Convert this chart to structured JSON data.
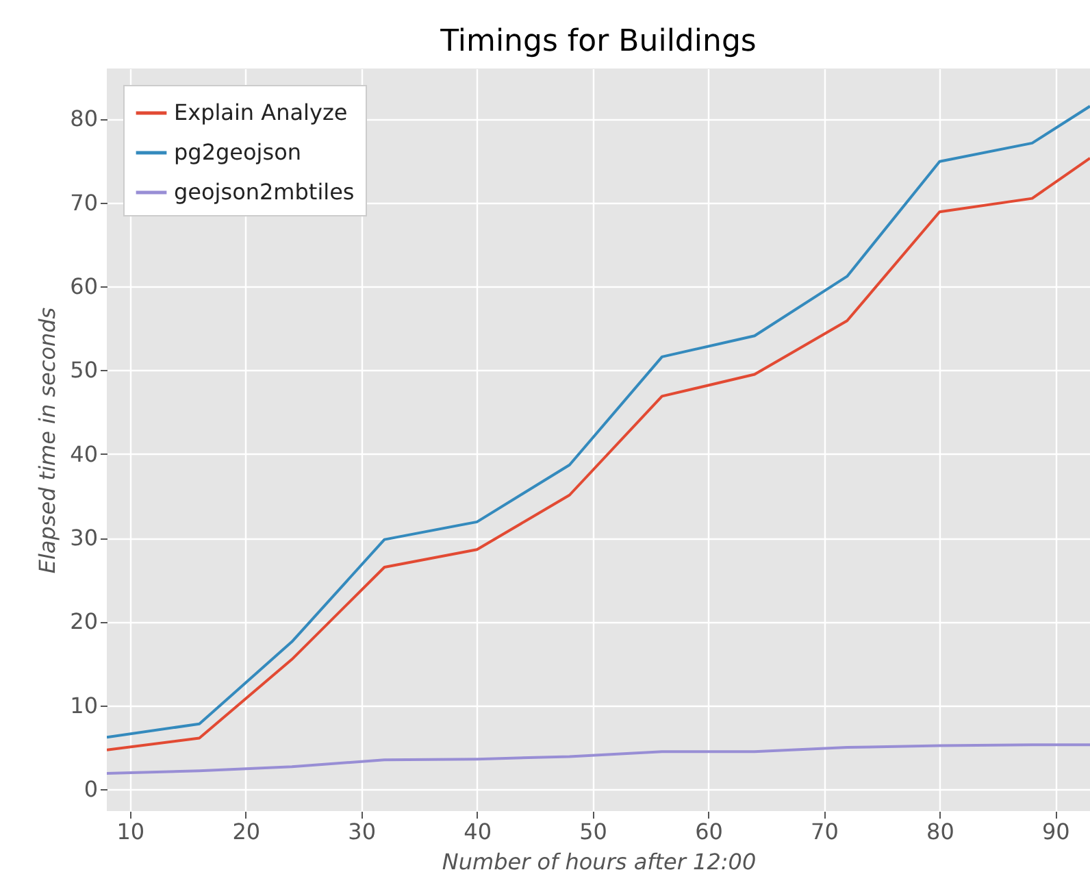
{
  "chart_data": {
    "type": "line",
    "title": "Timings for Buildings",
    "xlabel": "Number of hours after 12:00",
    "ylabel": "Elapsed time in seconds",
    "x": [
      8,
      16,
      24,
      32,
      40,
      48,
      56,
      64,
      72,
      80,
      88,
      93
    ],
    "series": [
      {
        "name": "Explain Analyze",
        "color": "#e24a33",
        "values": [
          4.7,
          6.1,
          15.5,
          26.5,
          28.6,
          35.1,
          46.9,
          49.5,
          55.9,
          68.9,
          70.5,
          75.3
        ]
      },
      {
        "name": "pg2geojson",
        "color": "#348abd",
        "values": [
          6.2,
          7.8,
          17.6,
          29.8,
          31.9,
          38.7,
          51.6,
          54.1,
          61.2,
          74.9,
          77.1,
          81.5
        ]
      },
      {
        "name": "geojson2mbtiles",
        "color": "#988ed5",
        "values": [
          1.9,
          2.2,
          2.7,
          3.5,
          3.6,
          3.9,
          4.5,
          4.5,
          5.0,
          5.2,
          5.3,
          5.3
        ]
      }
    ],
    "xlim": [
      8,
      93
    ],
    "xticks": [
      10,
      20,
      30,
      40,
      50,
      60,
      70,
      80,
      90
    ],
    "ylim": [
      -2.6,
      86
    ],
    "yticks": [
      0,
      10,
      20,
      30,
      40,
      50,
      60,
      70,
      80
    ],
    "grid": true,
    "legend": "top left",
    "marker": "none",
    "line_style": "solid"
  }
}
